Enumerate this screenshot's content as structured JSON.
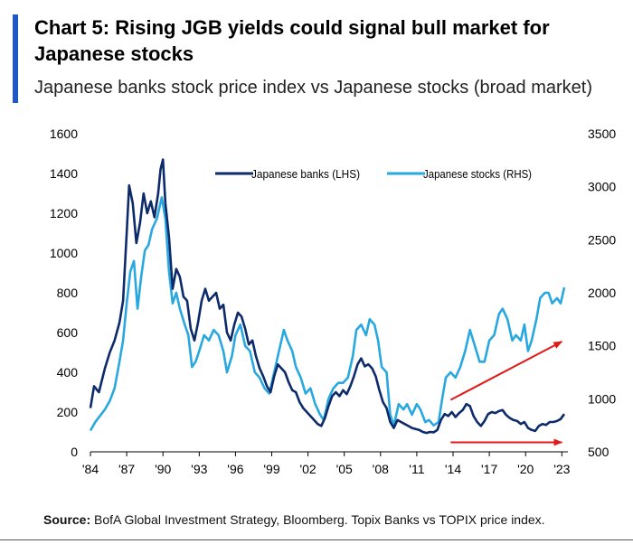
{
  "header": {
    "title": "Chart 5: Rising JGB yields could signal bull market for Japanese stocks",
    "subtitle": "Japanese banks stock price index vs Japanese stocks (broad market)",
    "accent_color": "#1f57c3"
  },
  "source": {
    "label": "Source:",
    "text": " BofA Global Investment Strategy, Bloomberg. Topix Banks vs TOPIX price index."
  },
  "chart_data": {
    "type": "line",
    "title": "Chart 5: Rising JGB yields could signal bull market for Japanese stocks",
    "subtitle": "Japanese banks stock price index vs Japanese stocks (broad market)",
    "x_ticks": [
      "'84",
      "'87",
      "'90",
      "'93",
      "'96",
      "'99",
      "'02",
      "'05",
      "'08",
      "'11",
      "'14",
      "'17",
      "'20",
      "'23"
    ],
    "xlim": [
      1984,
      2023.5
    ],
    "y_left": {
      "lim": [
        0,
        1600
      ],
      "ticks": [
        0,
        200,
        400,
        600,
        800,
        1000,
        1200,
        1400,
        1600
      ]
    },
    "y_right": {
      "lim": [
        500,
        3500
      ],
      "ticks": [
        500,
        1000,
        1500,
        2000,
        2500,
        3000,
        3500
      ]
    },
    "grid": false,
    "legend_position": "top-center",
    "series": [
      {
        "name": "Japanese banks (LHS)",
        "axis": "left",
        "color": "#0d2b6b",
        "points": [
          [
            1984.0,
            220
          ],
          [
            1984.3,
            330
          ],
          [
            1984.7,
            300
          ],
          [
            1985.2,
            420
          ],
          [
            1985.6,
            500
          ],
          [
            1986.0,
            560
          ],
          [
            1986.4,
            650
          ],
          [
            1986.7,
            760
          ],
          [
            1987.0,
            1100
          ],
          [
            1987.2,
            1340
          ],
          [
            1987.5,
            1250
          ],
          [
            1987.8,
            1050
          ],
          [
            1988.1,
            1150
          ],
          [
            1988.4,
            1300
          ],
          [
            1988.7,
            1200
          ],
          [
            1989.0,
            1260
          ],
          [
            1989.3,
            1180
          ],
          [
            1989.6,
            1300
          ],
          [
            1989.8,
            1420
          ],
          [
            1990.0,
            1470
          ],
          [
            1990.2,
            1250
          ],
          [
            1990.5,
            1080
          ],
          [
            1990.8,
            820
          ],
          [
            1991.1,
            920
          ],
          [
            1991.4,
            880
          ],
          [
            1991.7,
            780
          ],
          [
            1992.0,
            760
          ],
          [
            1992.3,
            620
          ],
          [
            1992.6,
            560
          ],
          [
            1992.9,
            650
          ],
          [
            1993.2,
            760
          ],
          [
            1993.5,
            820
          ],
          [
            1993.8,
            760
          ],
          [
            1994.1,
            780
          ],
          [
            1994.4,
            800
          ],
          [
            1994.7,
            720
          ],
          [
            1995.0,
            740
          ],
          [
            1995.3,
            600
          ],
          [
            1995.6,
            560
          ],
          [
            1995.9,
            640
          ],
          [
            1996.2,
            700
          ],
          [
            1996.5,
            680
          ],
          [
            1996.8,
            620
          ],
          [
            1997.1,
            540
          ],
          [
            1997.4,
            560
          ],
          [
            1997.7,
            480
          ],
          [
            1998.0,
            420
          ],
          [
            1998.3,
            380
          ],
          [
            1998.6,
            330
          ],
          [
            1998.9,
            300
          ],
          [
            1999.2,
            380
          ],
          [
            1999.5,
            440
          ],
          [
            1999.8,
            420
          ],
          [
            2000.1,
            400
          ],
          [
            2000.4,
            350
          ],
          [
            2000.7,
            310
          ],
          [
            2001.0,
            300
          ],
          [
            2001.3,
            250
          ],
          [
            2001.6,
            220
          ],
          [
            2001.9,
            200
          ],
          [
            2002.2,
            180
          ],
          [
            2002.5,
            160
          ],
          [
            2002.8,
            140
          ],
          [
            2003.1,
            130
          ],
          [
            2003.4,
            170
          ],
          [
            2003.7,
            230
          ],
          [
            2004.0,
            280
          ],
          [
            2004.3,
            300
          ],
          [
            2004.6,
            280
          ],
          [
            2004.9,
            310
          ],
          [
            2005.2,
            290
          ],
          [
            2005.5,
            330
          ],
          [
            2005.8,
            380
          ],
          [
            2006.1,
            440
          ],
          [
            2006.4,
            470
          ],
          [
            2006.7,
            430
          ],
          [
            2007.0,
            440
          ],
          [
            2007.3,
            420
          ],
          [
            2007.6,
            380
          ],
          [
            2007.9,
            310
          ],
          [
            2008.2,
            250
          ],
          [
            2008.5,
            220
          ],
          [
            2008.8,
            150
          ],
          [
            2009.1,
            120
          ],
          [
            2009.4,
            160
          ],
          [
            2009.7,
            150
          ],
          [
            2010.0,
            140
          ],
          [
            2010.3,
            130
          ],
          [
            2010.6,
            120
          ],
          [
            2010.9,
            115
          ],
          [
            2011.2,
            110
          ],
          [
            2011.5,
            100
          ],
          [
            2011.8,
            95
          ],
          [
            2012.1,
            100
          ],
          [
            2012.4,
            98
          ],
          [
            2012.7,
            110
          ],
          [
            2013.0,
            160
          ],
          [
            2013.3,
            190
          ],
          [
            2013.6,
            180
          ],
          [
            2013.9,
            200
          ],
          [
            2014.2,
            175
          ],
          [
            2014.5,
            195
          ],
          [
            2014.8,
            210
          ],
          [
            2015.1,
            240
          ],
          [
            2015.4,
            230
          ],
          [
            2015.7,
            180
          ],
          [
            2016.0,
            150
          ],
          [
            2016.3,
            130
          ],
          [
            2016.6,
            155
          ],
          [
            2016.9,
            190
          ],
          [
            2017.2,
            200
          ],
          [
            2017.5,
            195
          ],
          [
            2017.8,
            205
          ],
          [
            2018.1,
            210
          ],
          [
            2018.4,
            185
          ],
          [
            2018.7,
            170
          ],
          [
            2019.0,
            160
          ],
          [
            2019.3,
            155
          ],
          [
            2019.6,
            140
          ],
          [
            2019.9,
            150
          ],
          [
            2020.2,
            120
          ],
          [
            2020.5,
            110
          ],
          [
            2020.8,
            105
          ],
          [
            2021.1,
            130
          ],
          [
            2021.4,
            140
          ],
          [
            2021.7,
            135
          ],
          [
            2022.0,
            150
          ],
          [
            2022.3,
            150
          ],
          [
            2022.6,
            155
          ],
          [
            2022.9,
            165
          ],
          [
            2023.2,
            190
          ]
        ]
      },
      {
        "name": "Japanese stocks (RHS)",
        "axis": "right",
        "color": "#29a8e0",
        "points": [
          [
            1984.0,
            700
          ],
          [
            1984.4,
            780
          ],
          [
            1984.8,
            840
          ],
          [
            1985.2,
            900
          ],
          [
            1985.6,
            980
          ],
          [
            1986.0,
            1100
          ],
          [
            1986.4,
            1350
          ],
          [
            1986.7,
            1550
          ],
          [
            1987.0,
            1900
          ],
          [
            1987.3,
            2200
          ],
          [
            1987.6,
            2300
          ],
          [
            1987.9,
            1850
          ],
          [
            1988.2,
            2150
          ],
          [
            1988.5,
            2400
          ],
          [
            1988.8,
            2450
          ],
          [
            1989.1,
            2600
          ],
          [
            1989.5,
            2700
          ],
          [
            1989.9,
            2900
          ],
          [
            1990.2,
            2700
          ],
          [
            1990.5,
            2200
          ],
          [
            1990.8,
            1900
          ],
          [
            1991.1,
            2000
          ],
          [
            1991.4,
            1850
          ],
          [
            1991.8,
            1700
          ],
          [
            1992.1,
            1600
          ],
          [
            1992.4,
            1300
          ],
          [
            1992.7,
            1350
          ],
          [
            1993.0,
            1450
          ],
          [
            1993.4,
            1600
          ],
          [
            1993.8,
            1550
          ],
          [
            1994.2,
            1650
          ],
          [
            1994.6,
            1600
          ],
          [
            1995.0,
            1450
          ],
          [
            1995.3,
            1250
          ],
          [
            1995.7,
            1400
          ],
          [
            1996.0,
            1600
          ],
          [
            1996.4,
            1700
          ],
          [
            1996.8,
            1500
          ],
          [
            1997.2,
            1450
          ],
          [
            1997.6,
            1250
          ],
          [
            1998.0,
            1200
          ],
          [
            1998.4,
            1100
          ],
          [
            1998.8,
            1050
          ],
          [
            1999.2,
            1250
          ],
          [
            1999.6,
            1450
          ],
          [
            2000.0,
            1650
          ],
          [
            2000.3,
            1550
          ],
          [
            2000.7,
            1450
          ],
          [
            2001.0,
            1300
          ],
          [
            2001.4,
            1200
          ],
          [
            2001.8,
            1050
          ],
          [
            2002.2,
            1100
          ],
          [
            2002.6,
            950
          ],
          [
            2003.0,
            850
          ],
          [
            2003.3,
            800
          ],
          [
            2003.7,
            1000
          ],
          [
            2004.1,
            1100
          ],
          [
            2004.5,
            1150
          ],
          [
            2004.9,
            1150
          ],
          [
            2005.3,
            1200
          ],
          [
            2005.7,
            1400
          ],
          [
            2006.0,
            1650
          ],
          [
            2006.4,
            1700
          ],
          [
            2006.8,
            1600
          ],
          [
            2007.1,
            1750
          ],
          [
            2007.5,
            1700
          ],
          [
            2007.8,
            1550
          ],
          [
            2008.1,
            1300
          ],
          [
            2008.5,
            1250
          ],
          [
            2008.8,
            850
          ],
          [
            2009.1,
            750
          ],
          [
            2009.5,
            950
          ],
          [
            2009.9,
            900
          ],
          [
            2010.2,
            950
          ],
          [
            2010.6,
            850
          ],
          [
            2011.0,
            950
          ],
          [
            2011.3,
            900
          ],
          [
            2011.7,
            780
          ],
          [
            2012.0,
            800
          ],
          [
            2012.4,
            750
          ],
          [
            2012.8,
            780
          ],
          [
            2013.1,
            1000
          ],
          [
            2013.4,
            1200
          ],
          [
            2013.8,
            1250
          ],
          [
            2014.2,
            1200
          ],
          [
            2014.6,
            1300
          ],
          [
            2015.0,
            1450
          ],
          [
            2015.4,
            1650
          ],
          [
            2015.8,
            1500
          ],
          [
            2016.2,
            1350
          ],
          [
            2016.6,
            1350
          ],
          [
            2017.0,
            1550
          ],
          [
            2017.4,
            1600
          ],
          [
            2017.8,
            1800
          ],
          [
            2018.1,
            1850
          ],
          [
            2018.5,
            1750
          ],
          [
            2018.9,
            1550
          ],
          [
            2019.2,
            1600
          ],
          [
            2019.6,
            1550
          ],
          [
            2019.9,
            1700
          ],
          [
            2020.2,
            1450
          ],
          [
            2020.5,
            1550
          ],
          [
            2020.9,
            1750
          ],
          [
            2021.2,
            1950
          ],
          [
            2021.6,
            2000
          ],
          [
            2021.9,
            2000
          ],
          [
            2022.2,
            1900
          ],
          [
            2022.6,
            1950
          ],
          [
            2022.9,
            1900
          ],
          [
            2023.2,
            2050
          ]
        ]
      }
    ],
    "annotations": [
      {
        "type": "arrow",
        "color": "#e0191a",
        "from": [
          2013.8,
          990
        ],
        "to": [
          2023.0,
          1540
        ],
        "axis": "right",
        "label": ""
      },
      {
        "type": "arrow",
        "color": "#e0191a",
        "from": [
          2013.8,
          590
        ],
        "to": [
          2023.0,
          590
        ],
        "axis": "right",
        "label": ""
      }
    ]
  }
}
